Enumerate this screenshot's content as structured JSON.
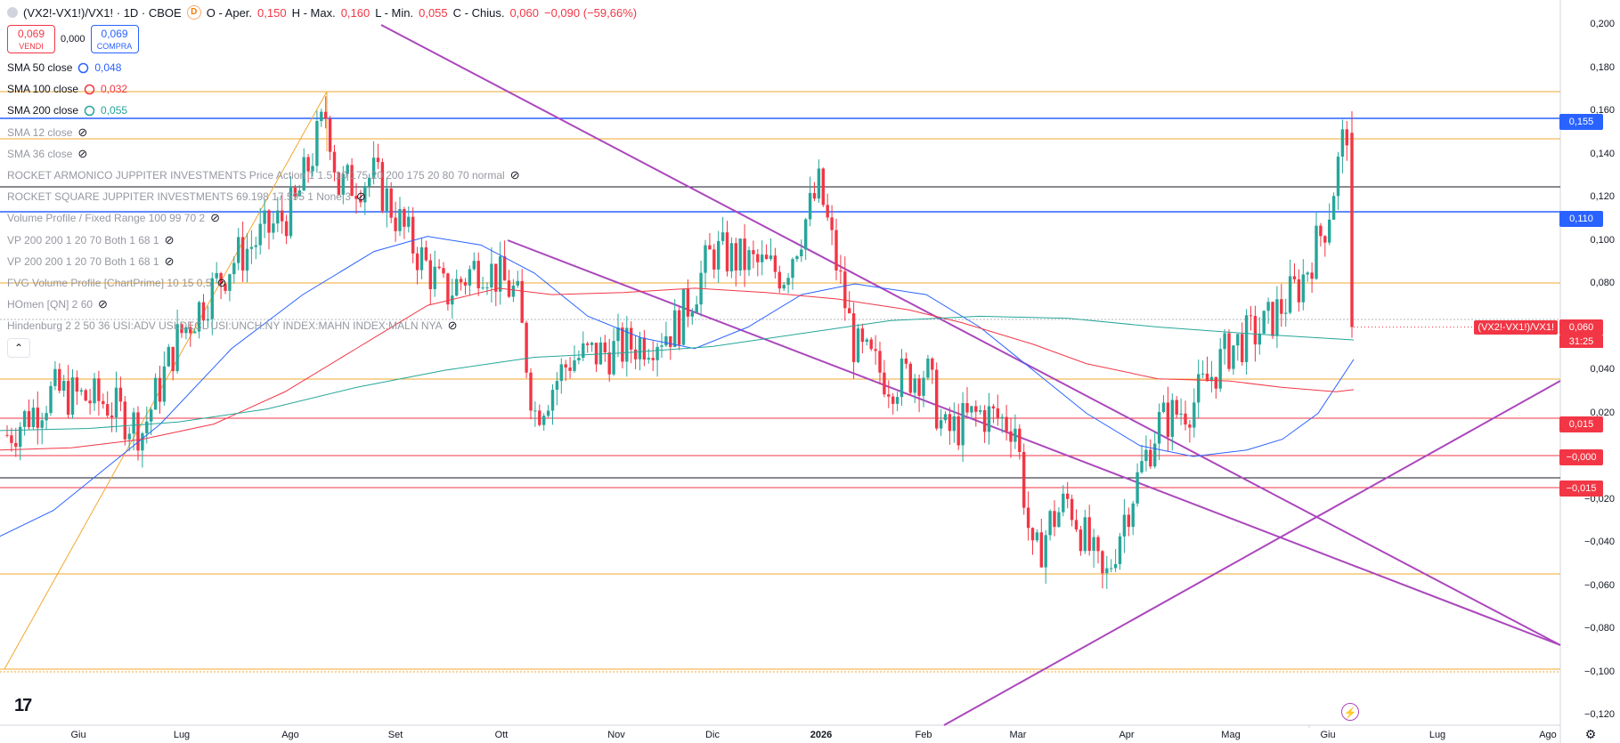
{
  "header": {
    "symbol": "(VX2!-VX1!)/VX1! · 1D · CBOE",
    "source_badge": "D",
    "open_label": "O - Aper.",
    "open_value": "0,150",
    "high_label": "H - Max.",
    "high_value": "0,160",
    "low_label": "L - Min.",
    "low_value": "0,055",
    "close_label": "C - Chius.",
    "close_value": "0,060",
    "change": "−0,090 (−59,66%)"
  },
  "trade": {
    "sell_price": "0,069",
    "sell_label": "VENDI",
    "spread": "0,000",
    "buy_price": "0,069",
    "buy_label": "COMPRA"
  },
  "indicators": [
    {
      "name": "SMA 50 close",
      "value": "0,048",
      "value_color": "#2962ff",
      "hidden": false
    },
    {
      "name": "SMA 100 close",
      "value": "0,032",
      "value_color": "#f23645",
      "hidden": false
    },
    {
      "name": "SMA 200 close",
      "value": "0,055",
      "value_color": "#26a69a",
      "hidden": false
    },
    {
      "name": "SMA 12 close",
      "value": "",
      "hidden": true
    },
    {
      "name": "SMA 36 close",
      "value": "",
      "hidden": true
    },
    {
      "name": "ROCKET ARMONICO JUPPITER INVESTMENTS Price Action 1 1.5 10 175 20 200 175 20 80 70 normal",
      "value": "",
      "hidden": true
    },
    {
      "name": "ROCKET SQUARE JUPPITER INVESTMENTS 69.198 17.595 1 None 3",
      "value": "",
      "hidden": true
    },
    {
      "name": "Volume Profile / Fixed Range 100 99 70 2",
      "value": "",
      "hidden": true
    },
    {
      "name": "VP 200 200 1 20 70 Both 1 68 1",
      "value": "",
      "hidden": true
    },
    {
      "name": "VP 200 200 1 20 70 Both 1 68 1",
      "value": "",
      "hidden": true
    },
    {
      "name": "FVG Volume Profile [ChartPrime] 10 15 0,5",
      "value": "",
      "hidden": true
    },
    {
      "name": "HOmen [QN] 2 60",
      "value": "",
      "hidden": true
    },
    {
      "name": "Hindenburg 2 2 50 36 USI:ADV USI:DECL USI:UNCH.NY INDEX:MAHN INDEX:MALN NYA",
      "value": "",
      "hidden": true
    }
  ],
  "price_axis": {
    "ticks": [
      "0,200",
      "0,180",
      "0,160",
      "0,140",
      "0,120",
      "0,100",
      "0,080",
      "0,040",
      "0,020",
      "−0,020",
      "−0,040",
      "−0,060",
      "−0,080",
      "−0,100",
      "−0,120"
    ],
    "tags": [
      {
        "label": "0,155",
        "value": 0.155,
        "color": "#2962ff"
      },
      {
        "label": "0,110",
        "value": 0.11,
        "color": "#2962ff"
      },
      {
        "label": "0,015",
        "value": 0.015,
        "color": "#f23645"
      },
      {
        "label": "−0,000",
        "value": -0.0005,
        "color": "#f23645"
      },
      {
        "label": "−0,015",
        "value": -0.015,
        "color": "#f23645"
      }
    ],
    "last_price": {
      "symbol": "(VX2!-VX1!)/VX1!",
      "value_label": "0,060",
      "value": 0.06,
      "countdown": "31:25"
    }
  },
  "time_axis": {
    "labels": [
      "Giu",
      "Lug",
      "Ago",
      "Set",
      "Ott",
      "Nov",
      "Dic",
      "2026",
      "Feb",
      "Mar",
      "Apr",
      "Mag",
      "Giu",
      "Lug",
      "Ago"
    ]
  },
  "colors": {
    "up": "#26a69a",
    "down": "#f23645",
    "sma50": "#2962ff",
    "sma100": "#f23645",
    "sma200": "#26a69a",
    "trendline": "#ab47bc",
    "hline_orange": "#f0a830"
  },
  "icons": {
    "logo": "tradingview-logo",
    "settings": "gear-icon",
    "replay": "lightning-icon"
  }
}
